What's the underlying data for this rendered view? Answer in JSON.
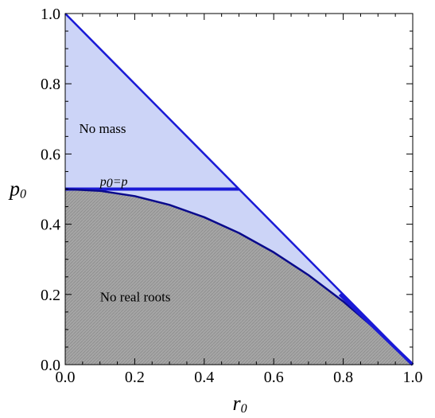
{
  "chart_data": {
    "type": "area",
    "xlabel": "r",
    "xlabel_sub": "0",
    "ylabel": "p",
    "ylabel_sub": "0",
    "xlim": [
      0,
      1
    ],
    "ylim": [
      0,
      1
    ],
    "x_ticks": [
      "0.0",
      "0.2",
      "0.4",
      "0.6",
      "0.8",
      "1.0"
    ],
    "y_ticks": [
      "0.0",
      "0.2",
      "0.4",
      "0.6",
      "0.8",
      "1.0"
    ],
    "grid": false,
    "colors": {
      "region_fill": "#ccd4f7",
      "roots_fill": "#a3a3a3",
      "line": "#1a1ad6",
      "line_dark": "#0a0a8c"
    },
    "regions": [
      {
        "label": "No mass",
        "label_at": [
          0.04,
          0.66
        ]
      },
      {
        "label": "No real roots",
        "label_at": [
          0.1,
          0.18
        ]
      }
    ],
    "annotations": [
      {
        "prefix": "p",
        "sub": "0",
        "rest": "=p",
        "at": [
          0.1,
          0.51
        ]
      }
    ],
    "series": [
      {
        "x": [
          0,
          1
        ],
        "y": [
          1,
          0
        ]
      },
      {
        "x": [
          0,
          0.5
        ],
        "y": [
          0.5,
          0.5
        ]
      },
      {
        "x": [
          0,
          0.1,
          0.2,
          0.3,
          0.4,
          0.5,
          0.6,
          0.7,
          0.8,
          0.9,
          1.0
        ],
        "y": [
          0.5,
          0.495,
          0.48,
          0.455,
          0.42,
          0.375,
          0.32,
          0.255,
          0.18,
          0.095,
          0
        ]
      },
      {
        "x": [
          0.79,
          1.0
        ],
        "y": [
          0.2,
          0.0
        ]
      }
    ]
  }
}
